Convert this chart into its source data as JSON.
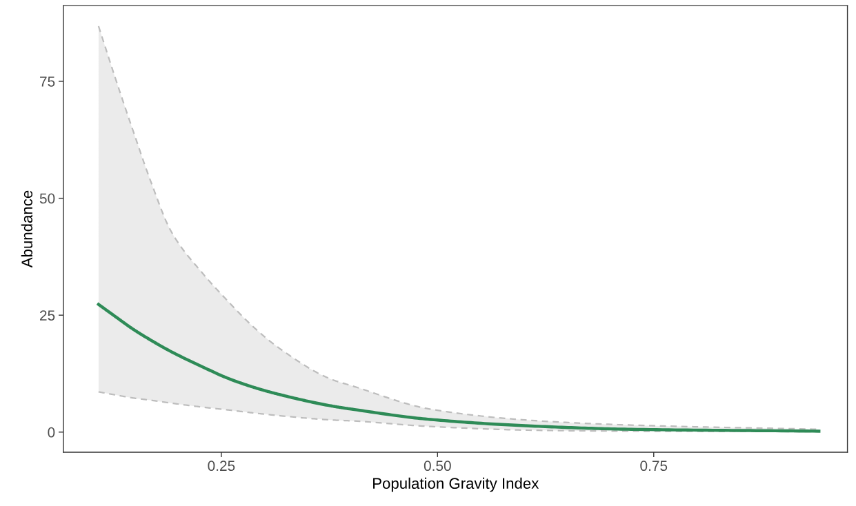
{
  "chart_data": {
    "type": "line",
    "xlabel": "Population Gravity Index",
    "ylabel": "Abundance",
    "x": [
      0.108,
      0.129,
      0.148,
      0.169,
      0.192,
      0.23,
      0.255,
      0.287,
      0.318,
      0.377,
      0.401,
      0.492,
      0.609,
      0.724,
      0.941
    ],
    "series": [
      {
        "color": "#2e8b57",
        "line_style": "solid",
        "values": [
          27.3,
          24.5,
          22.0,
          19.6,
          17.2,
          13.8,
          11.7,
          9.6,
          8.0,
          5.6,
          4.9,
          2.7,
          1.3,
          0.6,
          0.2
        ],
        "lower": [
          8.6,
          7.9,
          7.3,
          6.8,
          6.2,
          5.3,
          4.8,
          4.1,
          3.5,
          2.6,
          2.4,
          1.2,
          0.4,
          0.2,
          0.1
        ],
        "upper": [
          86.8,
          74.8,
          64.4,
          53.3,
          42.9,
          33.6,
          28.5,
          22.5,
          17.8,
          11.3,
          9.9,
          4.9,
          2.5,
          1.5,
          0.6
        ]
      },
      {
        "color": "#bdbdbd",
        "line_style": "dashed",
        "values": [
          8.6,
          7.9,
          7.3,
          6.8,
          6.2,
          5.3,
          4.8,
          4.1,
          3.5,
          2.6,
          2.4,
          1.2,
          0.4,
          0.2,
          0.1
        ]
      },
      {
        "color": "#bdbdbd",
        "line_style": "dashed",
        "values": [
          86.8,
          74.8,
          64.4,
          53.3,
          42.9,
          33.6,
          28.5,
          22.5,
          17.8,
          11.3,
          9.9,
          4.9,
          2.5,
          1.5,
          0.6
        ]
      }
    ],
    "xlim": [
      0.0674,
      0.974
    ],
    "ylim": [
      -4.3,
      91.2
    ],
    "xticks": [
      {
        "value": 0.25,
        "label": "0.25"
      },
      {
        "value": 0.5,
        "label": "0.50"
      },
      {
        "value": 0.75,
        "label": "0.75"
      }
    ],
    "yticks": [
      0,
      25,
      50,
      75
    ],
    "grid": false,
    "legend": false,
    "marker": "none"
  }
}
